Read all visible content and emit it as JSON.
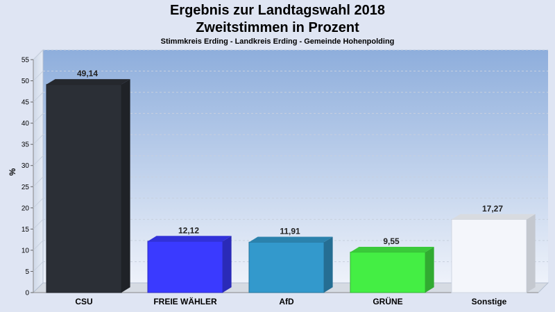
{
  "chart_data": {
    "type": "bar",
    "title": "Ergebnis zur Landtagswahl 2018",
    "subtitle": "Zweitstimmen in Prozent",
    "caption": "Stimmkreis Erding - Landkreis Erding - Gemeinde Hohenpolding",
    "ylabel": "%",
    "xlabel": "",
    "ylim": [
      0,
      55
    ],
    "yticks": [
      0,
      5,
      10,
      15,
      20,
      25,
      30,
      35,
      40,
      45,
      50,
      55
    ],
    "categories": [
      "CSU",
      "FREIE WÄHLER",
      "AfD",
      "GRÜNE",
      "Sonstige"
    ],
    "values": [
      49.14,
      12.12,
      11.91,
      9.55,
      17.27
    ],
    "value_labels": [
      "49,14",
      "12,12",
      "11,91",
      "9,55",
      "17,27"
    ],
    "colors": [
      "#2b2f36",
      "#3a3aff",
      "#3399cc",
      "#44ee44",
      "#f4f6fb"
    ],
    "grid": true,
    "legend": "none"
  }
}
